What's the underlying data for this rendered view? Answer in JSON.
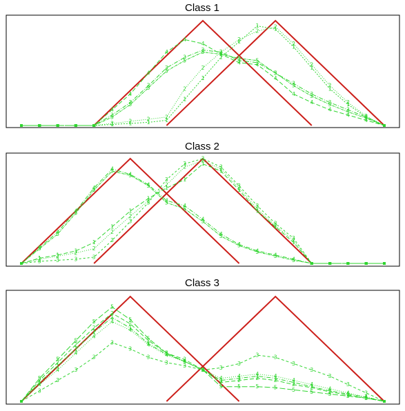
{
  "chart_data": [
    {
      "type": "line",
      "title": "Class 1",
      "x": [
        0,
        1,
        2,
        3,
        4,
        5,
        6,
        7,
        8,
        9,
        10,
        11,
        12,
        13,
        14,
        15,
        16,
        17,
        18,
        19,
        20
      ],
      "ylim": [
        0,
        1
      ],
      "reference_series": [
        {
          "name": "",
          "color": "#cc1f1a",
          "points": [
            [
              4,
              0
            ],
            [
              10,
              1
            ],
            [
              16,
              0
            ]
          ]
        },
        {
          "name": "",
          "color": "#cc1f1a",
          "points": [
            [
              8,
              0
            ],
            [
              14,
              1
            ],
            [
              20,
              0
            ]
          ]
        }
      ],
      "series": [
        {
          "name": "",
          "marker": "1",
          "dash": "2,2",
          "values": [
            0,
            0,
            0,
            0,
            0,
            0.01,
            0.02,
            0.03,
            0.05,
            0.25,
            0.45,
            0.65,
            0.8,
            0.95,
            0.92,
            0.75,
            0.55,
            0.35,
            0.2,
            0.08,
            0
          ]
        },
        {
          "name": "",
          "marker": "2",
          "dash": "1,2",
          "values": [
            0,
            0,
            0,
            0,
            0,
            0.02,
            0.04,
            0.06,
            0.08,
            0.35,
            0.55,
            0.7,
            0.82,
            0.9,
            0.94,
            0.78,
            0.58,
            0.38,
            0.22,
            0.09,
            0
          ]
        },
        {
          "name": "",
          "marker": "3",
          "dash": "6,2,1,2",
          "values": [
            0,
            0,
            0,
            0,
            0,
            0.1,
            0.22,
            0.38,
            0.55,
            0.65,
            0.72,
            0.7,
            0.62,
            0.6,
            0.5,
            0.4,
            0.3,
            0.22,
            0.15,
            0.08,
            0
          ]
        },
        {
          "name": "",
          "marker": "4",
          "dash": "6,3",
          "values": [
            0,
            0,
            0,
            0,
            0,
            0.15,
            0.3,
            0.5,
            0.7,
            0.82,
            0.78,
            0.68,
            0.6,
            0.58,
            0.45,
            0.3,
            0.22,
            0.15,
            0.1,
            0.05,
            0
          ]
        },
        {
          "name": "",
          "marker": "5",
          "dash": "4,1,1,1",
          "values": [
            0,
            0,
            0,
            0,
            0,
            0.08,
            0.2,
            0.36,
            0.52,
            0.62,
            0.7,
            0.68,
            0.64,
            0.62,
            0.5,
            0.38,
            0.28,
            0.2,
            0.13,
            0.07,
            0
          ]
        }
      ]
    },
    {
      "type": "line",
      "title": "Class 2",
      "x": [
        0,
        1,
        2,
        3,
        4,
        5,
        6,
        7,
        8,
        9,
        10,
        11,
        12,
        13,
        14,
        15,
        16,
        17,
        18,
        19,
        20
      ],
      "ylim": [
        0,
        1
      ],
      "reference_series": [
        {
          "name": "",
          "color": "#cc1f1a",
          "points": [
            [
              0,
              0
            ],
            [
              6,
              1
            ],
            [
              12,
              0
            ]
          ]
        },
        {
          "name": "",
          "color": "#cc1f1a",
          "points": [
            [
              4,
              0
            ],
            [
              10,
              1
            ],
            [
              16,
              0
            ]
          ]
        }
      ],
      "series": [
        {
          "name": "",
          "marker": "1",
          "dash": "6,3",
          "values": [
            0,
            0.05,
            0.08,
            0.12,
            0.2,
            0.35,
            0.5,
            0.62,
            0.72,
            0.8,
            0.95,
            0.88,
            0.7,
            0.5,
            0.35,
            0.2,
            0,
            0,
            0,
            0,
            0
          ]
        },
        {
          "name": "",
          "marker": "2",
          "dash": "1,2",
          "values": [
            0,
            0.04,
            0.07,
            0.1,
            0.14,
            0.3,
            0.45,
            0.6,
            0.75,
            0.92,
            0.98,
            0.9,
            0.72,
            0.52,
            0.36,
            0.22,
            0,
            0,
            0,
            0,
            0
          ]
        },
        {
          "name": "",
          "marker": "3",
          "dash": "3,3",
          "values": [
            0,
            0.02,
            0.03,
            0.04,
            0.06,
            0.22,
            0.4,
            0.58,
            0.8,
            0.95,
            1.0,
            0.92,
            0.74,
            0.55,
            0.38,
            0.24,
            0,
            0,
            0,
            0,
            0
          ]
        },
        {
          "name": "",
          "marker": "4",
          "dash": "6,2,1,2",
          "values": [
            0,
            0.15,
            0.3,
            0.5,
            0.72,
            0.9,
            0.85,
            0.75,
            0.6,
            0.55,
            0.42,
            0.28,
            0.18,
            0.12,
            0.08,
            0.04,
            0,
            0,
            0,
            0,
            0
          ]
        },
        {
          "name": "",
          "marker": "5",
          "dash": "4,1,1,1",
          "values": [
            0,
            0.14,
            0.28,
            0.48,
            0.7,
            0.88,
            0.84,
            0.74,
            0.58,
            0.52,
            0.4,
            0.26,
            0.17,
            0.11,
            0.07,
            0.03,
            0,
            0,
            0,
            0,
            0
          ]
        }
      ]
    },
    {
      "type": "line",
      "title": "Class 3",
      "x": [
        0,
        1,
        2,
        3,
        4,
        5,
        6,
        7,
        8,
        9,
        10,
        11,
        12,
        13,
        14,
        15,
        16,
        17,
        18,
        19,
        20
      ],
      "ylim": [
        0,
        1
      ],
      "reference_series": [
        {
          "name": "",
          "color": "#cc1f1a",
          "points": [
            [
              0,
              0
            ],
            [
              6,
              1
            ],
            [
              12,
              0
            ]
          ]
        },
        {
          "name": "",
          "color": "#cc1f1a",
          "points": [
            [
              8,
              0
            ],
            [
              14,
              1
            ],
            [
              20,
              0
            ]
          ]
        }
      ],
      "series": [
        {
          "name": "",
          "marker": "1",
          "dash": "6,2,1,2",
          "values": [
            0,
            0.18,
            0.34,
            0.5,
            0.66,
            0.8,
            0.7,
            0.55,
            0.45,
            0.38,
            0.3,
            0.2,
            0.22,
            0.24,
            0.22,
            0.18,
            0.14,
            0.1,
            0.07,
            0.04,
            0
          ]
        },
        {
          "name": "",
          "marker": "2",
          "dash": "6,3",
          "values": [
            0,
            0.2,
            0.37,
            0.54,
            0.7,
            0.84,
            0.74,
            0.58,
            0.46,
            0.4,
            0.3,
            0.18,
            0.2,
            0.22,
            0.2,
            0.16,
            0.13,
            0.09,
            0.06,
            0.03,
            0
          ]
        },
        {
          "name": "",
          "marker": "3",
          "dash": "4,3",
          "values": [
            0,
            0.1,
            0.2,
            0.3,
            0.42,
            0.56,
            0.5,
            0.42,
            0.37,
            0.34,
            0.3,
            0.32,
            0.36,
            0.44,
            0.42,
            0.36,
            0.3,
            0.24,
            0.16,
            0.08,
            0
          ]
        },
        {
          "name": "",
          "marker": "4",
          "dash": "1,2",
          "values": [
            0,
            0.16,
            0.3,
            0.46,
            0.62,
            0.76,
            0.68,
            0.54,
            0.44,
            0.38,
            0.3,
            0.22,
            0.24,
            0.26,
            0.24,
            0.2,
            0.16,
            0.12,
            0.08,
            0.04,
            0
          ]
        },
        {
          "name": "",
          "marker": "5",
          "dash": "8,3",
          "values": [
            0,
            0.22,
            0.4,
            0.58,
            0.76,
            0.9,
            0.78,
            0.6,
            0.46,
            0.38,
            0.3,
            0.14,
            0.14,
            0.14,
            0.13,
            0.11,
            0.09,
            0.07,
            0.05,
            0.03,
            0
          ]
        }
      ]
    }
  ]
}
